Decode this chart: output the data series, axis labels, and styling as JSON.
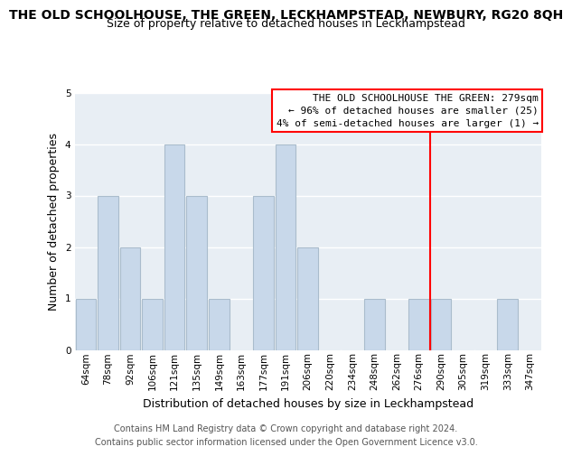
{
  "title": "THE OLD SCHOOLHOUSE, THE GREEN, LECKHAMPSTEAD, NEWBURY, RG20 8QH",
  "subtitle": "Size of property relative to detached houses in Leckhampstead",
  "xlabel": "Distribution of detached houses by size in Leckhampstead",
  "ylabel": "Number of detached properties",
  "footer_line1": "Contains HM Land Registry data © Crown copyright and database right 2024.",
  "footer_line2": "Contains public sector information licensed under the Open Government Licence v3.0.",
  "bin_labels": [
    "64sqm",
    "78sqm",
    "92sqm",
    "106sqm",
    "121sqm",
    "135sqm",
    "149sqm",
    "163sqm",
    "177sqm",
    "191sqm",
    "206sqm",
    "220sqm",
    "234sqm",
    "248sqm",
    "262sqm",
    "276sqm",
    "290sqm",
    "305sqm",
    "319sqm",
    "333sqm",
    "347sqm"
  ],
  "bar_heights": [
    1,
    3,
    2,
    1,
    4,
    3,
    1,
    0,
    3,
    4,
    2,
    0,
    0,
    1,
    0,
    1,
    1,
    0,
    0,
    1,
    0
  ],
  "bar_color": "#c8d8ea",
  "bar_edge_color": "#aabccc",
  "highlight_line_color": "red",
  "annotation_box_title": "THE OLD SCHOOLHOUSE THE GREEN: 279sqm",
  "annotation_line1": "← 96% of detached houses are smaller (25)",
  "annotation_line2": "4% of semi-detached houses are larger (1) →",
  "ylim": [
    0,
    5
  ],
  "background_color": "#ffffff",
  "plot_bg_color": "#e8eef4",
  "grid_color": "#ffffff",
  "title_fontsize": 10,
  "subtitle_fontsize": 9,
  "axis_label_fontsize": 9,
  "tick_fontsize": 7.5,
  "footer_fontsize": 7
}
